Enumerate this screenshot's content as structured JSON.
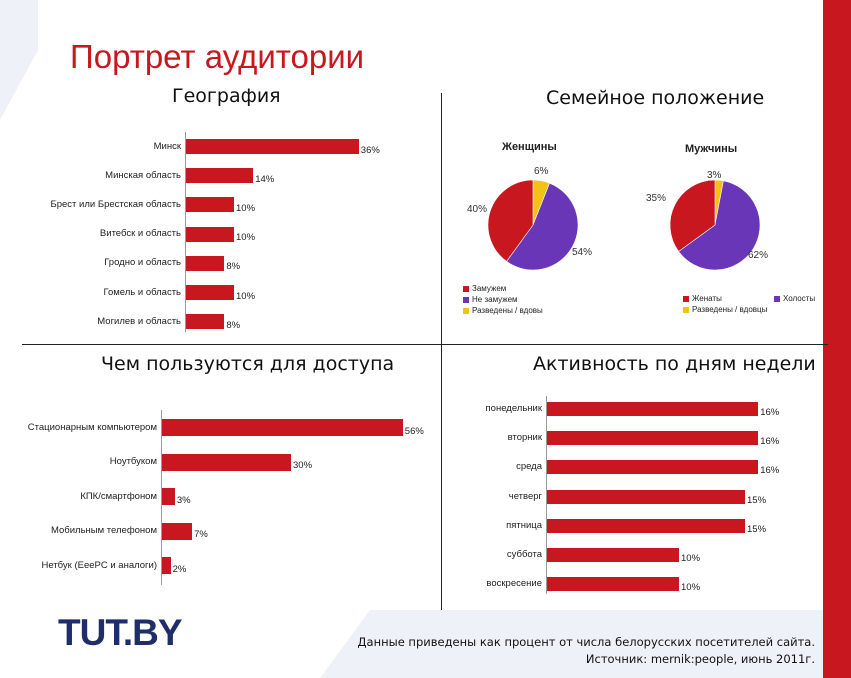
{
  "page": {
    "title": "Портрет аудитории",
    "footer_line1": "Данные приведены как процент от числа белорусских посетителей сайта.",
    "footer_line2": "Источник: mernik:people, июнь 2011г.",
    "logo_text": "TUT.BY",
    "colors": {
      "accent": "#c8171e",
      "purple": "#6a36b8",
      "yellow": "#f2c219",
      "logo": "#1f2d6b"
    }
  },
  "chart_data": [
    {
      "type": "bar",
      "orientation": "horizontal",
      "title": "География",
      "categories": [
        "Минск",
        "Минская область",
        "Брест или Брестская область",
        "Витебск и область",
        "Гродно и область",
        "Гомель и область",
        "Могилев и область"
      ],
      "values": [
        36,
        14,
        10,
        10,
        8,
        10,
        8
      ],
      "value_labels": [
        "36%",
        "14%",
        "10%",
        "10%",
        "8%",
        "10%",
        "8%"
      ],
      "color": "#c8171e"
    },
    {
      "type": "pie",
      "title": "Семейное положение",
      "pies": [
        {
          "title": "Женщины",
          "slices": [
            {
              "name": "Замужем",
              "value": 40,
              "label": "40%",
              "color": "#c8171e"
            },
            {
              "name": "Не замужем",
              "value": 54,
              "label": "54%",
              "color": "#6a36b8"
            },
            {
              "name": "Разведены / вдовы",
              "value": 6,
              "label": "6%",
              "color": "#f2c219"
            }
          ]
        },
        {
          "title": "Мужчины",
          "slices": [
            {
              "name": "Женаты",
              "value": 35,
              "label": "35%",
              "color": "#c8171e"
            },
            {
              "name": "Холосты",
              "value": 62,
              "label": "62%",
              "color": "#6a36b8"
            },
            {
              "name": "Разведены / вдовцы",
              "value": 3,
              "label": "3%",
              "color": "#f2c219"
            }
          ]
        }
      ]
    },
    {
      "type": "bar",
      "orientation": "horizontal",
      "title": "Чем пользуются для доступа",
      "categories": [
        "Стационарным компьютером",
        "Ноутбуком",
        "КПК/смартфоном",
        "Мобильным телефоном",
        "Нетбук (EeePC и аналоги)"
      ],
      "values": [
        56,
        30,
        3,
        7,
        2
      ],
      "value_labels": [
        "56%",
        "30%",
        "3%",
        "7%",
        "2%"
      ],
      "color": "#c8171e"
    },
    {
      "type": "bar",
      "orientation": "horizontal",
      "title": "Активность по дням недели",
      "categories": [
        "понедельник",
        "вторник",
        "среда",
        "четверг",
        "пятница",
        "суббота",
        "воскресение"
      ],
      "values": [
        16,
        16,
        16,
        15,
        15,
        10,
        10
      ],
      "value_labels": [
        "16%",
        "16%",
        "16%",
        "15%",
        "15%",
        "10%",
        "10%"
      ],
      "color": "#c8171e"
    }
  ]
}
